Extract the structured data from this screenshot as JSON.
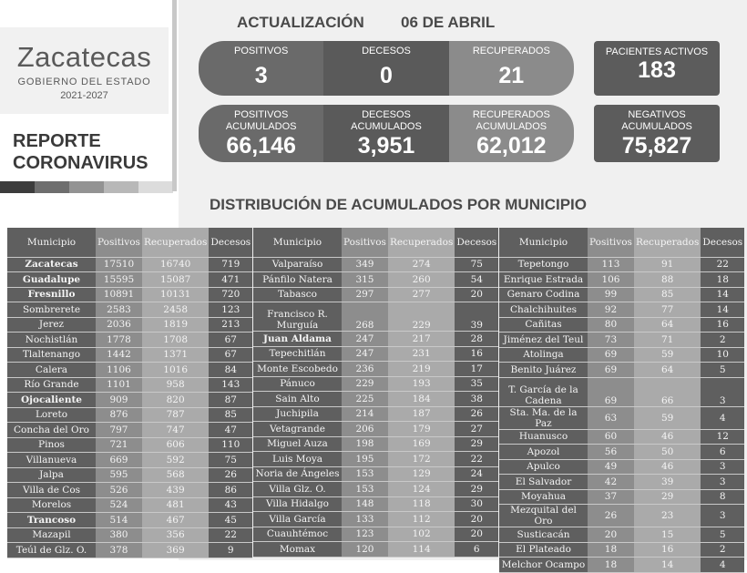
{
  "logo": {
    "name": "Zacatecas",
    "subtitle": "GOBIERNO DEL ESTADO",
    "years": "2021-2027"
  },
  "report": {
    "line1": "REPORTE",
    "line2": "CORONAVIRUS"
  },
  "update": {
    "label": "ACTUALIZACIÓN",
    "date": "06 DE ABRIL"
  },
  "daily": [
    {
      "label": "POSITIVOS",
      "value": "3"
    },
    {
      "label": "DECESOS",
      "value": "0"
    },
    {
      "label": "RECUPERADOS",
      "value": "21"
    }
  ],
  "active": {
    "label": "PACIENTES ACTIVOS",
    "value": "183"
  },
  "cumulative": [
    {
      "label1": "POSITIVOS",
      "label2": "ACUMULADOS",
      "value": "66,146"
    },
    {
      "label1": "DECESOS",
      "label2": "ACUMULADOS",
      "value": "3,951"
    },
    {
      "label1": "RECUPERADOS",
      "label2": "ACUMULADOS",
      "value": "62,012"
    }
  ],
  "negatives": {
    "label1": "NEGATIVOS",
    "label2": "ACUMULADOS",
    "value": "75,827"
  },
  "distribution_title": "DISTRIBUCIÓN DE ACUMULADOS POR MUNICIPIO",
  "columns": [
    "Municipio",
    "Positivos",
    "Recuperados",
    "Decesos"
  ],
  "tables": [
    [
      [
        "Zacatecas",
        "17510",
        "16740",
        "719",
        1
      ],
      [
        "Guadalupe",
        "15595",
        "15087",
        "471",
        1
      ],
      [
        "Fresnillo",
        "10891",
        "10131",
        "720",
        1
      ],
      [
        "Sombrerete",
        "2583",
        "2458",
        "123"
      ],
      [
        "Jerez",
        "2036",
        "1819",
        "213"
      ],
      [
        "Nochistlán",
        "1778",
        "1708",
        "67"
      ],
      [
        "Tlaltenango",
        "1442",
        "1371",
        "67"
      ],
      [
        "Calera",
        "1106",
        "1016",
        "84"
      ],
      [
        "Río Grande",
        "1101",
        "958",
        "143"
      ],
      [
        "Ojocaliente",
        "909",
        "820",
        "87",
        1
      ],
      [
        "Loreto",
        "876",
        "787",
        "85"
      ],
      [
        "Concha del Oro",
        "797",
        "747",
        "47"
      ],
      [
        "Pinos",
        "721",
        "606",
        "110"
      ],
      [
        "Villanueva",
        "669",
        "592",
        "75"
      ],
      [
        "Jalpa",
        "595",
        "568",
        "26"
      ],
      [
        "Villa de Cos",
        "526",
        "439",
        "86"
      ],
      [
        "Morelos",
        "524",
        "481",
        "43"
      ],
      [
        "Trancoso",
        "514",
        "467",
        "45",
        1
      ],
      [
        "Mazapil",
        "380",
        "356",
        "22"
      ],
      [
        "Teúl de Glz. O.",
        "378",
        "369",
        "9"
      ]
    ],
    [
      [
        "Valparaíso",
        "349",
        "274",
        "75"
      ],
      [
        "Pánfilo Natera",
        "315",
        "260",
        "54"
      ],
      [
        "Tabasco",
        "297",
        "277",
        "20"
      ],
      [
        "Francisco R. Murguía",
        "268",
        "229",
        "39"
      ],
      [
        "Juan Aldama",
        "247",
        "217",
        "28",
        1
      ],
      [
        "Tepechitlán",
        "247",
        "231",
        "16"
      ],
      [
        "Monte Escobedo",
        "236",
        "219",
        "17"
      ],
      [
        "Pánuco",
        "229",
        "193",
        "35"
      ],
      [
        "Sain Alto",
        "225",
        "184",
        "38"
      ],
      [
        "Juchipila",
        "214",
        "187",
        "26"
      ],
      [
        "Vetagrande",
        "206",
        "179",
        "27"
      ],
      [
        "Miguel Auza",
        "198",
        "169",
        "29"
      ],
      [
        "Luis Moya",
        "195",
        "172",
        "22"
      ],
      [
        "Noria de Ángeles",
        "153",
        "129",
        "24"
      ],
      [
        "Villa Glz. O.",
        "153",
        "124",
        "29"
      ],
      [
        "Villa Hidalgo",
        "148",
        "118",
        "30"
      ],
      [
        "Villa García",
        "133",
        "112",
        "20"
      ],
      [
        "Cuauhtémoc",
        "123",
        "102",
        "20"
      ],
      [
        "Momax",
        "120",
        "114",
        "6"
      ]
    ],
    [
      [
        "Tepetongo",
        "113",
        "91",
        "22"
      ],
      [
        "Enrique Estrada",
        "106",
        "88",
        "18"
      ],
      [
        "Genaro Codina",
        "99",
        "85",
        "14"
      ],
      [
        "Chalchihuites",
        "92",
        "77",
        "14"
      ],
      [
        "Cañitas",
        "80",
        "64",
        "16"
      ],
      [
        "Jiménez del Teul",
        "73",
        "71",
        "2"
      ],
      [
        "Atolinga",
        "69",
        "59",
        "10"
      ],
      [
        "Benito Juárez",
        "69",
        "64",
        "5"
      ],
      [
        "T. García de la Cadena",
        "69",
        "66",
        "3"
      ],
      [
        "Sta. Ma. de la Paz",
        "63",
        "59",
        "4"
      ],
      [
        "Huanusco",
        "60",
        "46",
        "12"
      ],
      [
        "Apozol",
        "56",
        "50",
        "6"
      ],
      [
        "Apulco",
        "49",
        "46",
        "3"
      ],
      [
        "El Salvador",
        "42",
        "39",
        "3"
      ],
      [
        "Moyahua",
        "37",
        "29",
        "8"
      ],
      [
        "Mezquital del Oro",
        "26",
        "23",
        "3"
      ],
      [
        "Susticacán",
        "20",
        "15",
        "5"
      ],
      [
        "El Plateado",
        "18",
        "16",
        "2"
      ],
      [
        "Melchor Ocampo",
        "18",
        "14",
        "4"
      ]
    ]
  ],
  "colors": {
    "bar_shades": [
      "#3c3c3c",
      "#6e6e6e",
      "#939393",
      "#b8b8b8",
      "#dcdcdc"
    ],
    "positivos": "#6a6a6a",
    "decesos": "#5a5a5a",
    "recuperados": "#8b8b8b"
  }
}
